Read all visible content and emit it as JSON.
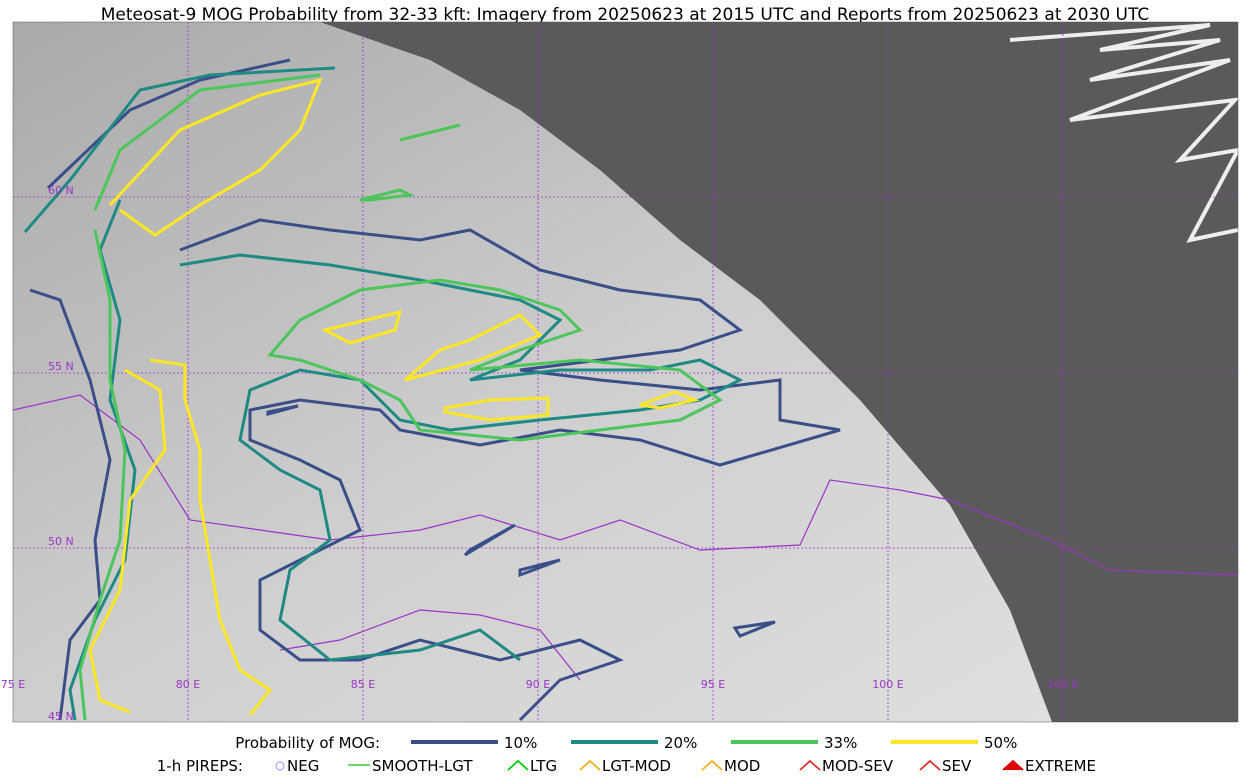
{
  "header": {
    "title": "Meteosat-9 MOG Probability from 32-33 kft: Imagery from 20250623 at 2015 UTC and Reports from 20250623 at 2030 UTC"
  },
  "map": {
    "lat_labels": [
      "60 N",
      "55 N",
      "50 N",
      "45 N"
    ],
    "lon_labels": [
      "75 E",
      "80 E",
      "85 E",
      "90 E",
      "95 E",
      "100 E",
      "105 E"
    ]
  },
  "legend": {
    "probability": {
      "title": "Probability of MOG:",
      "items": [
        {
          "label": "10%",
          "color": "#3a4f8a"
        },
        {
          "label": "20%",
          "color": "#1f8a84"
        },
        {
          "label": "33%",
          "color": "#4cc65a"
        },
        {
          "label": "50%",
          "color": "#fde725"
        }
      ]
    },
    "pireps": {
      "title": "1-h PIREPS:",
      "items": [
        {
          "label": "NEG",
          "color": "#b8b8ff"
        },
        {
          "label": "SMOOTH-LGT",
          "color": "#33cc33"
        },
        {
          "label": "LTG",
          "color": "#00cc00"
        },
        {
          "label": "LGT-MOD",
          "color": "#f0b020"
        },
        {
          "label": "MOD",
          "color": "#f0b020"
        },
        {
          "label": "MOD-SEV",
          "color": "#e03030"
        },
        {
          "label": "SEV",
          "color": "#e03030"
        },
        {
          "label": "EXTREME",
          "color": "#e00000"
        }
      ]
    }
  }
}
